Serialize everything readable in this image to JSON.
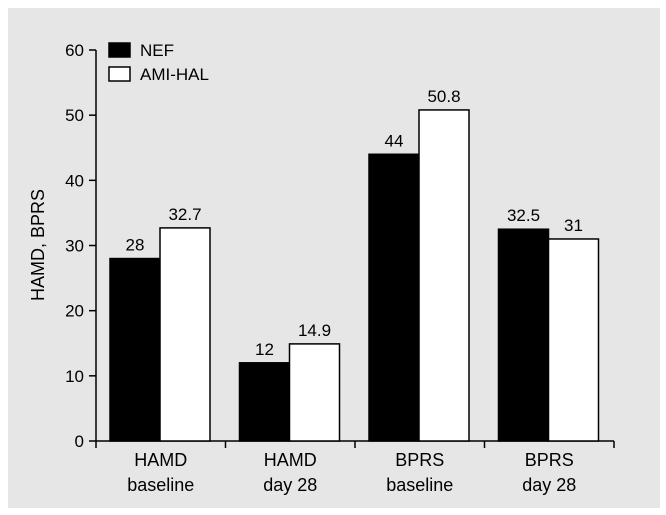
{
  "chart_data": {
    "type": "bar",
    "ylabel": "HAMD, BPRS",
    "ylim": [
      0,
      60
    ],
    "yticks": [
      0,
      10,
      20,
      30,
      40,
      50,
      60
    ],
    "grid": false,
    "legend_position": "top-left",
    "categories": [
      [
        "HAMD",
        "baseline"
      ],
      [
        "HAMD",
        "day 28"
      ],
      [
        "BPRS",
        "baseline"
      ],
      [
        "BPRS",
        "day 28"
      ]
    ],
    "series": [
      {
        "name": "NEF",
        "color": "#000000",
        "values": [
          28,
          12,
          44,
          32.5
        ],
        "labels": [
          "28",
          "12",
          "44",
          "32.5"
        ]
      },
      {
        "name": "AMI-HAL",
        "color": "#ffffff",
        "values": [
          32.7,
          14.9,
          50.8,
          31
        ],
        "labels": [
          "32.7",
          "14.9",
          "50.8",
          "31"
        ]
      }
    ]
  }
}
